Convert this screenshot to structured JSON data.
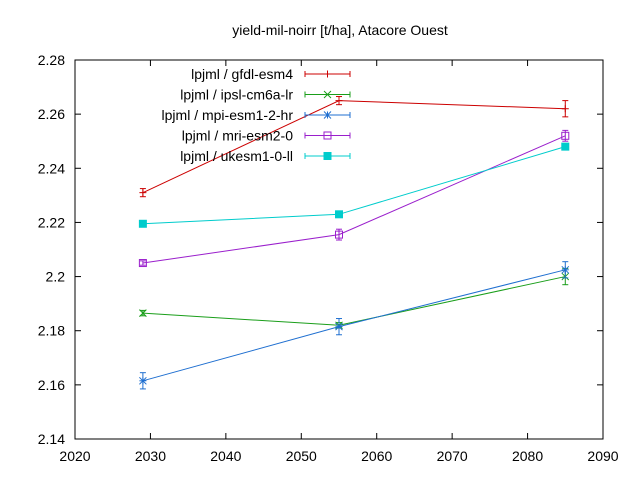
{
  "chart_data": {
    "type": "line",
    "title": "yield-mil-noirr [t/ha], Atacore Ouest",
    "xlabel": "",
    "ylabel": "",
    "xlim": [
      2020,
      2090
    ],
    "ylim": [
      2.14,
      2.28
    ],
    "xticks": [
      2020,
      2030,
      2040,
      2050,
      2060,
      2070,
      2080,
      2090
    ],
    "yticks": [
      2.14,
      2.16,
      2.18,
      2.2,
      2.22,
      2.24,
      2.26,
      2.28
    ],
    "xtick_labels": [
      "2020",
      "2030",
      "2040",
      "2050",
      "2060",
      "2070",
      "2080",
      "2090"
    ],
    "ytick_labels": [
      "2.14",
      "2.16",
      "2.18",
      "2.2",
      "2.22",
      "2.24",
      "2.26",
      "2.28"
    ],
    "grid": false,
    "legend_position": "top-left",
    "x": [
      2029,
      2055,
      2085
    ],
    "series": [
      {
        "name": "lpjml / gfdl-esm4",
        "color": "#cc0000",
        "marker": "plus",
        "values": [
          2.231,
          2.265,
          2.262
        ],
        "errors": [
          0.0015,
          0.0015,
          0.003
        ]
      },
      {
        "name": "lpjml / ipsl-cm6a-lr",
        "color": "#1a9e1a",
        "marker": "x",
        "values": [
          2.1865,
          2.182,
          2.2
        ],
        "errors": [
          0.001,
          0.001,
          0.003
        ]
      },
      {
        "name": "lpjml / mpi-esm1-2-hr",
        "color": "#1f6fd0",
        "marker": "star",
        "values": [
          2.1615,
          2.1815,
          2.2025
        ],
        "errors": [
          0.003,
          0.003,
          0.003
        ]
      },
      {
        "name": "lpjml / mri-esm2-0",
        "color": "#9a1fcc",
        "marker": "open-square",
        "values": [
          2.205,
          2.2155,
          2.252
        ],
        "errors": [
          0.0008,
          0.002,
          0.002
        ]
      },
      {
        "name": "lpjml / ukesm1-0-ll",
        "color": "#00cccc",
        "marker": "filled-square",
        "values": [
          2.2195,
          2.223,
          2.248
        ],
        "errors": [
          0.0008,
          0.0008,
          0.0008
        ]
      }
    ]
  }
}
